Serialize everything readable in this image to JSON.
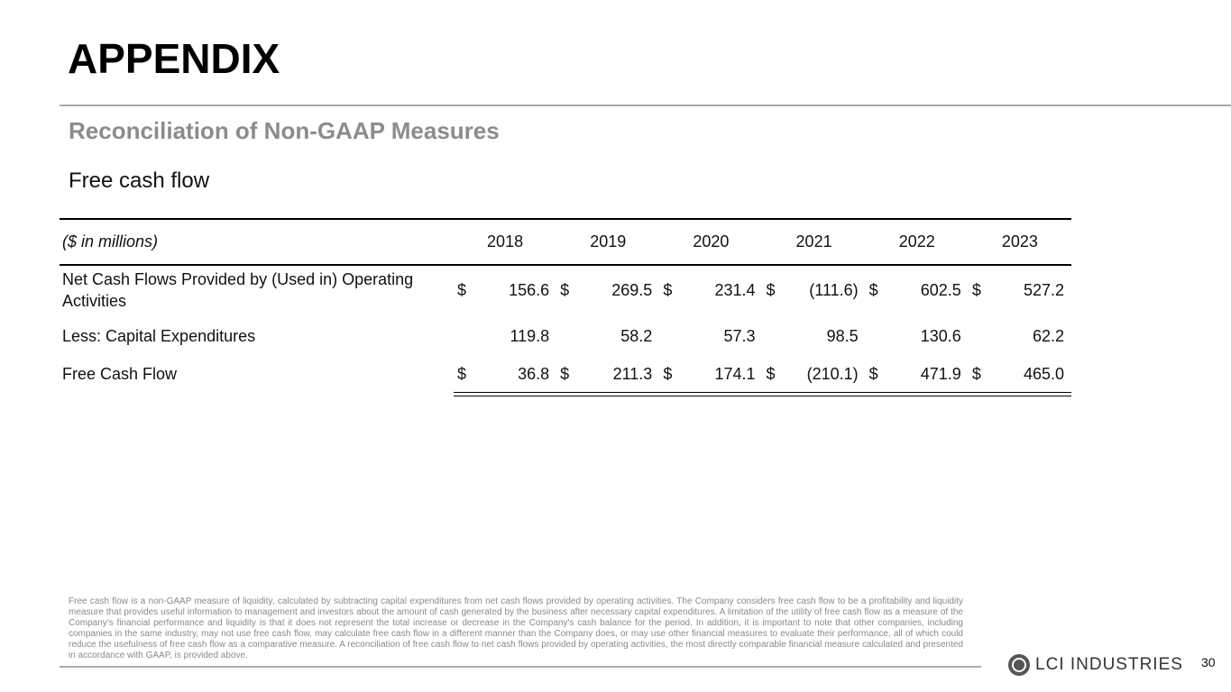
{
  "header": {
    "title": "APPENDIX",
    "subtitle": "Reconciliation of Non-GAAP Measures",
    "section": "Free cash flow"
  },
  "table": {
    "columns": [
      "($ in millions)",
      "2018",
      "2019",
      "2020",
      "2021",
      "2022",
      "2023"
    ],
    "rows": [
      {
        "label": "Net Cash Flows Provided by (Used in) Operating Activities",
        "cells": [
          {
            "currency": "$",
            "amount": "156.6"
          },
          {
            "currency": "$",
            "amount": "269.5"
          },
          {
            "currency": "$",
            "amount": "231.4"
          },
          {
            "currency": "$",
            "amount": "(111.6)"
          },
          {
            "currency": "$",
            "amount": "602.5"
          },
          {
            "currency": "$",
            "amount": "527.2"
          }
        ]
      },
      {
        "label": "Less: Capital Expenditures",
        "cells": [
          {
            "amount": "119.8"
          },
          {
            "amount": "58.2"
          },
          {
            "amount": "57.3"
          },
          {
            "amount": "98.5"
          },
          {
            "amount": "130.6"
          },
          {
            "amount": "62.2"
          }
        ]
      },
      {
        "label": "Free Cash Flow",
        "cells": [
          {
            "currency": "$",
            "amount": "36.8"
          },
          {
            "currency": "$",
            "amount": "211.3"
          },
          {
            "currency": "$",
            "amount": "174.1"
          },
          {
            "currency": "$",
            "amount": "(210.1)"
          },
          {
            "currency": "$",
            "amount": "471.9"
          },
          {
            "currency": "$",
            "amount": "465.0"
          }
        ]
      }
    ]
  },
  "footer": {
    "note": "Free cash flow is a non-GAAP measure of liquidity, calculated by subtracting capital expenditures from net cash flows provided by operating activities. The Company considers free cash flow to be a profitability and liquidity measure that provides useful information to management and investors about the amount of cash generated by the business after necessary capital expenditures. A limitation of the utility of free cash flow as a measure of the Company's financial performance and liquidity is that it does not represent the total increase or decrease in the Company's cash balance for the period. In addition, it is important to note that other companies, including companies in the same industry, may not use free cash flow, may calculate free cash flow in a different manner than the Company does, or may use other financial measures to evaluate their performance, all of which could reduce the usefulness of free cash flow as a comparative measure. A reconciliation of free cash flow to net cash flows provided by operating activities, the most directly comparable financial measure calculated and presented in accordance with GAAP, is provided above.",
    "logo_text": "LCI INDUSTRIES",
    "page_number": "30"
  }
}
